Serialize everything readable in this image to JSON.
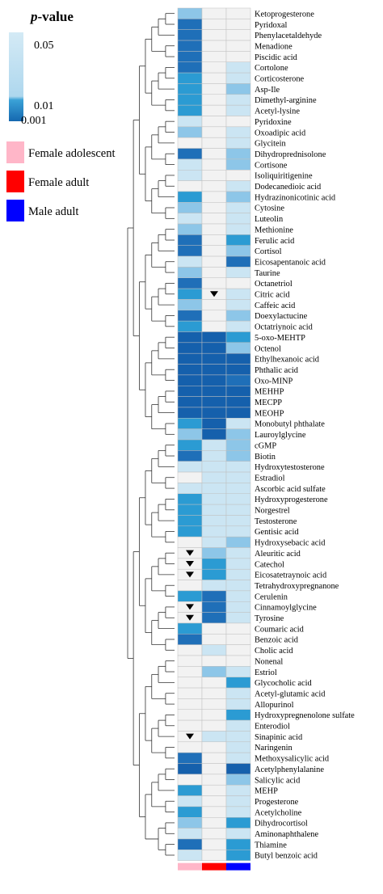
{
  "legend": {
    "title_italic": "p",
    "title_rest": "-value",
    "gradient_labels": [
      "0.05",
      "0.01",
      "0.001"
    ],
    "groups": [
      {
        "name": "Female adolescent",
        "color": "#FFB6C8"
      },
      {
        "name": "Female adult",
        "color": "#FF0000"
      },
      {
        "name": "Male adult",
        "color": "#0000FF"
      }
    ]
  },
  "chart_data": {
    "type": "heatmap",
    "value_scale": {
      "kind": "p-value",
      "levels": [
        "0.05",
        "0.01",
        "0.001"
      ]
    },
    "level_colors": {
      "0": "#F2F2F2",
      "1": "#CBE5F3",
      "2": "#8DC6E8",
      "3": "#2B9BD3",
      "4": "#1F6FB8",
      "5": "#1560AC"
    },
    "columns": [
      "Female adolescent",
      "Female adult",
      "Male adult"
    ],
    "column_colors": [
      "#FFB6C8",
      "#FF0000",
      "#0000FF"
    ],
    "rows": [
      "Ketoprogesterone",
      "Pyridoxal",
      "Phenylacetaldehyde",
      "Menadione",
      "Piscidic acid",
      "Cortolone",
      "Corticosterone",
      "Asp-Ile",
      "Dimethyl-arginine",
      "Acetyl-lysine",
      "Pyridoxine",
      "Oxoadipic acid",
      "Glycitein",
      "Dihydroprednisolone",
      "Cortisone",
      "Isoliquiritigenine",
      "Dodecanedioic acid",
      "Hydrazinonicotinic acid",
      "Cytosine",
      "Luteolin",
      "Methionine",
      "Ferulic acid",
      "Cortisol",
      "Eicosapentanoic acid",
      "Taurine",
      "Octanetriol",
      "Citric acid",
      "Caffeic acid",
      "Doexylactucine",
      "Octatriynoic acid",
      "5-oxo-MEHTP",
      "Octenol",
      "Ethylhexanoic acid",
      "Phthalic acid",
      "Oxo-MINP",
      "MEHHP",
      "MECPP",
      "MEOHP",
      "Monobutyl phthalate",
      "Lauroylglycine",
      "cGMP",
      "Biotin",
      "Hydroxytestosterone",
      "Estradiol",
      "Ascorbic acid sulfate",
      "Hydroxyprogesterone",
      "Norgestrel",
      "Testosterone",
      "Gentisic acid",
      "Hydroxysebacic acid",
      "Aleuritic acid",
      "Catechol",
      "Eicosatetraynoic acid",
      "Tetrahydroxypregnanone",
      "Cerulenin",
      "Cinnamoylglycine",
      "Tyrosine",
      "Coumaric acid",
      "Benzoic acid",
      "Cholic acid",
      "Nonenal",
      "Estriol",
      "Glycocholic acid",
      "Acetyl-glutamic acid",
      "Allopurinol",
      "Hydroxypregnenolone sulfate",
      "Enterodiol",
      "Sinapinic acid",
      "Naringenin",
      "Methoxysalicylic acid",
      "Acetylphenylalanine",
      "Salicylic acid",
      "MEHP",
      "Progesterone",
      "Acetylcholine",
      "Dihydrocortisol",
      "Aminonaphthalene",
      "Thiamine",
      "Butyl benzoic acid"
    ],
    "values": [
      [
        2,
        0,
        0
      ],
      [
        4,
        0,
        0
      ],
      [
        4,
        0,
        0
      ],
      [
        4,
        0,
        0
      ],
      [
        4,
        0,
        0
      ],
      [
        4,
        0,
        1
      ],
      [
        3,
        0,
        1
      ],
      [
        3,
        0,
        2
      ],
      [
        3,
        0,
        1
      ],
      [
        3,
        0,
        1
      ],
      [
        1,
        0,
        0
      ],
      [
        2,
        0,
        1
      ],
      [
        0,
        0,
        1
      ],
      [
        4,
        0,
        2
      ],
      [
        1,
        0,
        2
      ],
      [
        1,
        0,
        0
      ],
      [
        0,
        0,
        1
      ],
      [
        3,
        0,
        2
      ],
      [
        2,
        0,
        1
      ],
      [
        1,
        0,
        1
      ],
      [
        2,
        0,
        1
      ],
      [
        4,
        0,
        3
      ],
      [
        4,
        0,
        2
      ],
      [
        1,
        0,
        4
      ],
      [
        2,
        0,
        1
      ],
      [
        4,
        0,
        0
      ],
      [
        3,
        0,
        1
      ],
      [
        2,
        0,
        1
      ],
      [
        4,
        0,
        2
      ],
      [
        3,
        0,
        1
      ],
      [
        5,
        5,
        3
      ],
      [
        5,
        5,
        2
      ],
      [
        5,
        5,
        5
      ],
      [
        5,
        5,
        5
      ],
      [
        5,
        5,
        4
      ],
      [
        5,
        5,
        5
      ],
      [
        5,
        5,
        5
      ],
      [
        5,
        5,
        5
      ],
      [
        3,
        5,
        1
      ],
      [
        2,
        5,
        2
      ],
      [
        3,
        1,
        2
      ],
      [
        4,
        1,
        2
      ],
      [
        1,
        1,
        1
      ],
      [
        0,
        1,
        1
      ],
      [
        1,
        1,
        1
      ],
      [
        3,
        1,
        1
      ],
      [
        3,
        1,
        1
      ],
      [
        3,
        1,
        1
      ],
      [
        3,
        1,
        1
      ],
      [
        0,
        1,
        2
      ],
      [
        0,
        2,
        1
      ],
      [
        0,
        3,
        1
      ],
      [
        0,
        3,
        1
      ],
      [
        0,
        1,
        1
      ],
      [
        3,
        4,
        1
      ],
      [
        0,
        4,
        1
      ],
      [
        0,
        4,
        1
      ],
      [
        3,
        0,
        0
      ],
      [
        4,
        0,
        0
      ],
      [
        0,
        1,
        0
      ],
      [
        0,
        0,
        0
      ],
      [
        0,
        2,
        1
      ],
      [
        0,
        0,
        3
      ],
      [
        0,
        0,
        1
      ],
      [
        0,
        0,
        1
      ],
      [
        0,
        0,
        3
      ],
      [
        0,
        0,
        1
      ],
      [
        0,
        1,
        1
      ],
      [
        0,
        0,
        1
      ],
      [
        4,
        0,
        1
      ],
      [
        5,
        0,
        5
      ],
      [
        0,
        0,
        2
      ],
      [
        3,
        0,
        1
      ],
      [
        1,
        0,
        1
      ],
      [
        3,
        0,
        1
      ],
      [
        2,
        0,
        3
      ],
      [
        1,
        0,
        1
      ],
      [
        4,
        0,
        3
      ],
      [
        1,
        0,
        3
      ]
    ],
    "markers": [
      {
        "row": "Citric acid",
        "column": "Female adult",
        "symbol": "▼"
      },
      {
        "row": "Aleuritic acid",
        "column": "Female adolescent",
        "symbol": "▼"
      },
      {
        "row": "Catechol",
        "column": "Female adolescent",
        "symbol": "▼"
      },
      {
        "row": "Eicosatetraynoic acid",
        "column": "Female adolescent",
        "symbol": "▼"
      },
      {
        "row": "Cinnamoylglycine",
        "column": "Female adolescent",
        "symbol": "▼"
      },
      {
        "row": "Tyrosine",
        "column": "Female adolescent",
        "symbol": "▼"
      },
      {
        "row": "Sinapinic acid",
        "column": "Female adolescent",
        "symbol": "▼"
      }
    ],
    "row_dendrogram": true
  }
}
